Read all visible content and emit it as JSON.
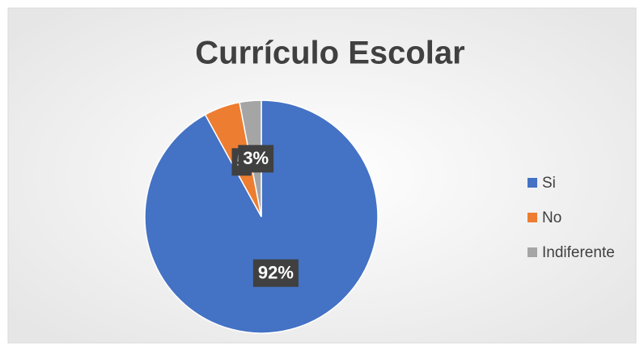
{
  "chart_data": {
    "type": "pie",
    "title": "Currículo Escolar",
    "categories": [
      "Si",
      "No",
      "Indiferente"
    ],
    "values": [
      92,
      5,
      3
    ],
    "value_labels": [
      "92%",
      "5",
      "3%"
    ],
    "colors": [
      "#4472c4",
      "#ed7d31",
      "#a5a5a5"
    ],
    "legend": "right"
  }
}
